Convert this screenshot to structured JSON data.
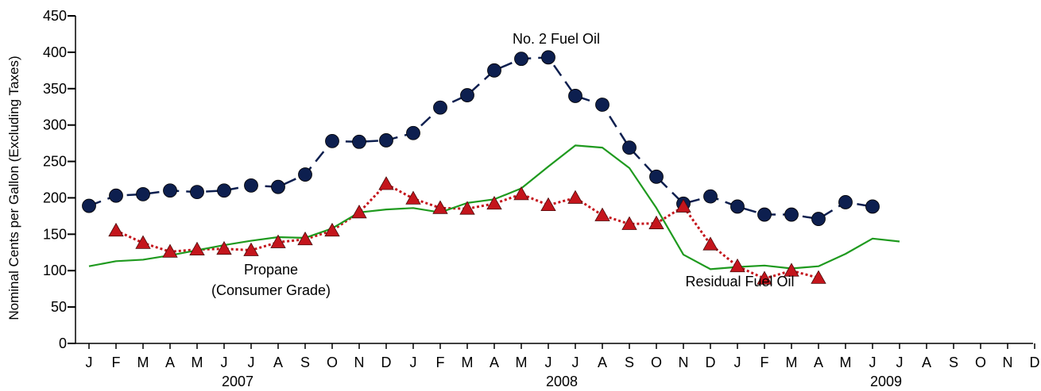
{
  "chart_data": {
    "type": "line",
    "ylabel": "Nominal Cents per Gallon (Excluding Taxes)",
    "ylim": [
      0,
      450
    ],
    "yticks": [
      0,
      50,
      100,
      150,
      200,
      250,
      300,
      350,
      400,
      450
    ],
    "x_month_labels": [
      "J",
      "F",
      "M",
      "A",
      "M",
      "J",
      "J",
      "A",
      "S",
      "O",
      "N",
      "D",
      "J",
      "F",
      "M",
      "A",
      "M",
      "J",
      "J",
      "A",
      "S",
      "O",
      "N",
      "D",
      "J",
      "F",
      "M",
      "A",
      "M",
      "J",
      "J",
      "A",
      "S",
      "O",
      "N",
      "D"
    ],
    "x_year_labels": [
      {
        "label": "2007",
        "month_index": 5.5
      },
      {
        "label": "2008",
        "month_index": 17.5
      },
      {
        "label": "2009",
        "month_index": 29.5
      }
    ],
    "grid": false,
    "legend": "none",
    "series": [
      {
        "name": "No. 2 Fuel Oil",
        "color": "#0d1f4f",
        "marker": "circle",
        "line_style": "dashed",
        "start_index": 0,
        "values": [
          189,
          203,
          205,
          210,
          208,
          210,
          217,
          215,
          232,
          278,
          277,
          279,
          289,
          324,
          341,
          375,
          391,
          393,
          340,
          328,
          269,
          229,
          192,
          202,
          188,
          177,
          177,
          171,
          194,
          188
        ]
      },
      {
        "name": "Residual Fuel Oil",
        "color": "#c4151c",
        "marker": "triangle",
        "line_style": "dotted",
        "start_index": 1,
        "values": [
          155,
          138,
          126,
          129,
          130,
          128,
          139,
          143,
          155,
          180,
          219,
          199,
          186,
          185,
          192,
          205,
          190,
          200,
          176,
          164,
          165,
          188,
          136,
          106,
          89,
          100,
          90
        ]
      },
      {
        "name": "Propane (Consumer Grade)",
        "color": "#1f9a1f",
        "marker": "none",
        "line_style": "solid",
        "start_index": 0,
        "values": [
          106,
          113,
          115,
          121,
          128,
          135,
          141,
          146,
          145,
          158,
          180,
          184,
          186,
          180,
          193,
          198,
          213,
          243,
          272,
          269,
          241,
          186,
          122,
          102,
          105,
          107,
          103,
          106,
          123,
          144,
          140
        ]
      }
    ],
    "annotations": [
      {
        "lines": [
          "No. 2 Fuel Oil"
        ]
      },
      {
        "lines": [
          "Propane",
          "(Consumer Grade)"
        ]
      },
      {
        "lines": [
          "Residual Fuel Oil"
        ]
      }
    ]
  }
}
